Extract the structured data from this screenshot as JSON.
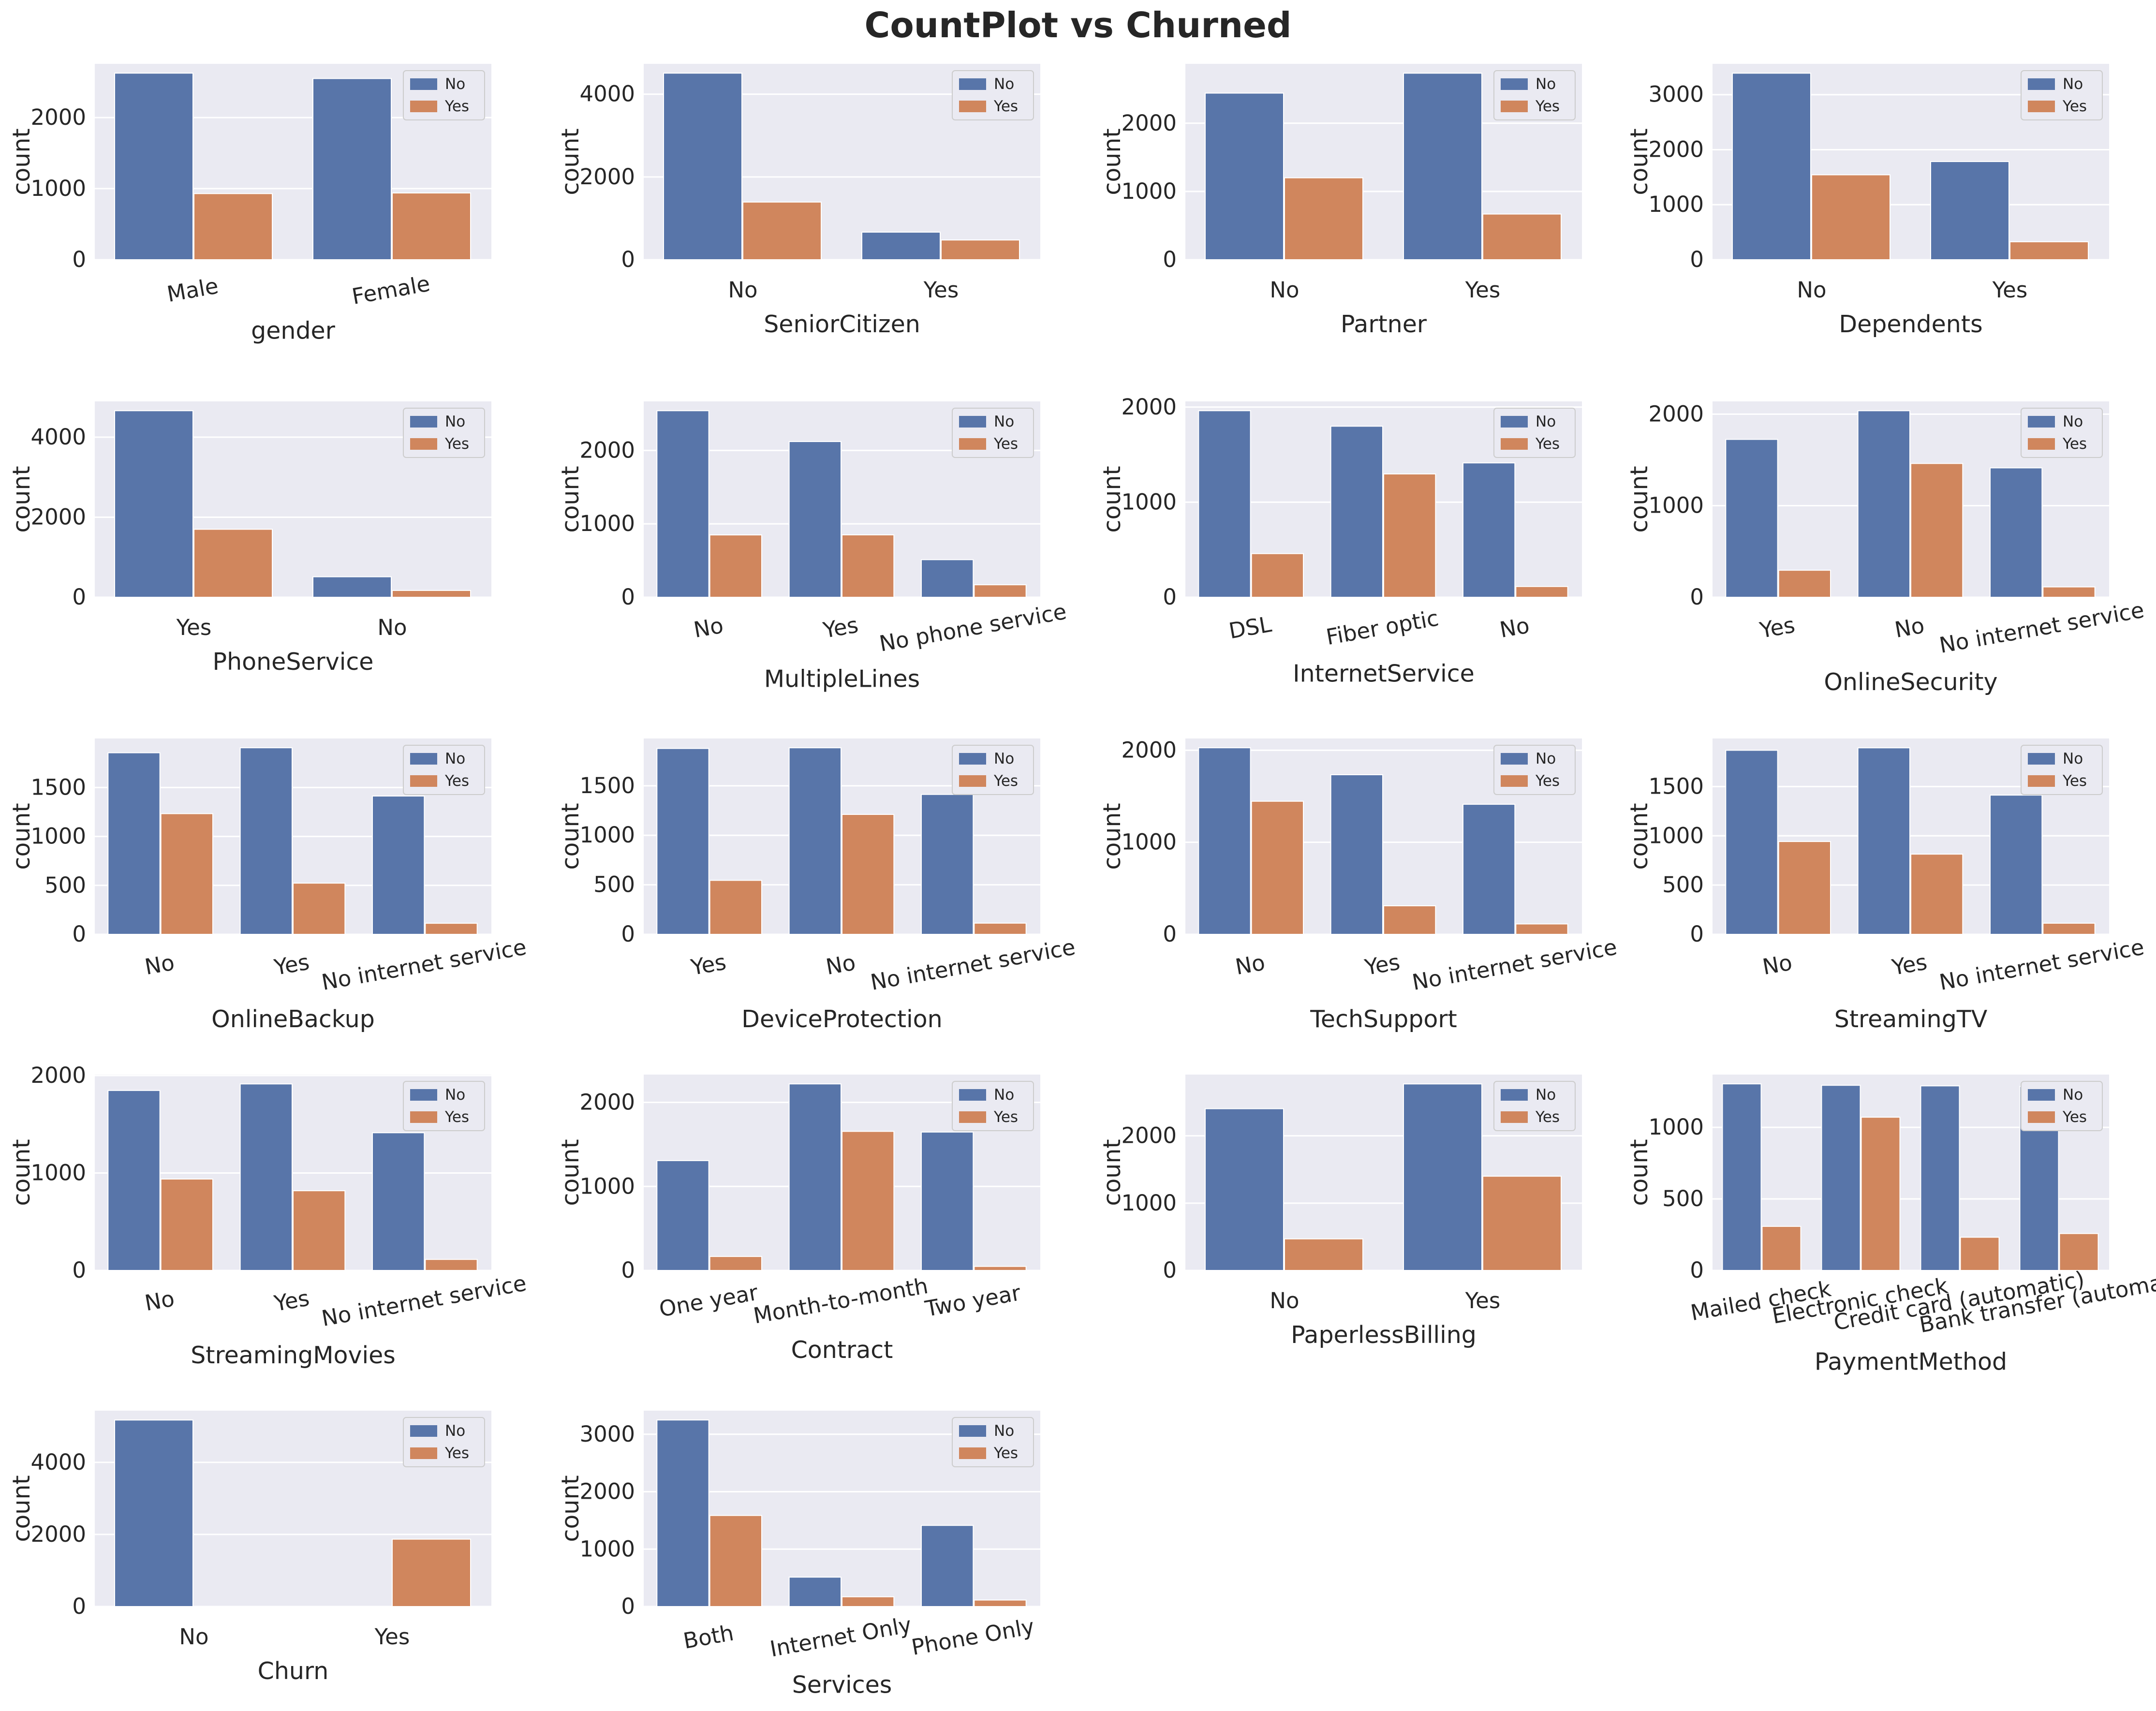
{
  "title": "CountPlot vs Churned",
  "colors": {
    "no": "#5875a9",
    "yes": "#d0865d",
    "panel_bg": "#eaeaf2",
    "grid": "#ffffff"
  },
  "legend_labels": [
    "No",
    "Yes"
  ],
  "chart_data": [
    {
      "type": "bar",
      "xlabel": "gender",
      "ylabel": "count",
      "categories": [
        "Male",
        "Female"
      ],
      "series": [
        {
          "name": "No",
          "values": [
            2625,
            2549
          ]
        },
        {
          "name": "Yes",
          "values": [
            930,
            939
          ]
        }
      ],
      "yticks": [
        0,
        1000,
        2000
      ],
      "ylim": [
        0,
        2756
      ],
      "rotate_labels": true,
      "legend": "top-right"
    },
    {
      "type": "bar",
      "xlabel": "SeniorCitizen",
      "ylabel": "count",
      "categories": [
        "No",
        "Yes"
      ],
      "series": [
        {
          "name": "No",
          "values": [
            4508,
            666
          ]
        },
        {
          "name": "Yes",
          "values": [
            1393,
            476
          ]
        }
      ],
      "yticks": [
        0,
        2000,
        4000
      ],
      "ylim": [
        0,
        4733
      ],
      "legend": "top-right"
    },
    {
      "type": "bar",
      "xlabel": "Partner",
      "ylabel": "count",
      "categories": [
        "No",
        "Yes"
      ],
      "series": [
        {
          "name": "No",
          "values": [
            2441,
            2733
          ]
        },
        {
          "name": "Yes",
          "values": [
            1200,
            669
          ]
        }
      ],
      "yticks": [
        0,
        1000,
        2000
      ],
      "ylim": [
        0,
        2870
      ],
      "legend": "top-right"
    },
    {
      "type": "bar",
      "xlabel": "Dependents",
      "ylabel": "count",
      "categories": [
        "No",
        "Yes"
      ],
      "series": [
        {
          "name": "No",
          "values": [
            3390,
            1784
          ]
        },
        {
          "name": "Yes",
          "values": [
            1543,
            326
          ]
        }
      ],
      "yticks": [
        0,
        1000,
        2000,
        3000
      ],
      "ylim": [
        0,
        3560
      ],
      "legend": "top-right"
    },
    {
      "type": "bar",
      "xlabel": "PhoneService",
      "ylabel": "count",
      "categories": [
        "Yes",
        "No"
      ],
      "series": [
        {
          "name": "No",
          "values": [
            4662,
            512
          ]
        },
        {
          "name": "Yes",
          "values": [
            1699,
            170
          ]
        }
      ],
      "yticks": [
        0,
        2000,
        4000
      ],
      "ylim": [
        0,
        4895
      ],
      "legend": "top-right"
    },
    {
      "type": "bar",
      "xlabel": "MultipleLines",
      "ylabel": "count",
      "categories": [
        "No",
        "Yes",
        "No phone service"
      ],
      "series": [
        {
          "name": "No",
          "values": [
            2541,
            2121,
            512
          ]
        },
        {
          "name": "Yes",
          "values": [
            849,
            850,
            170
          ]
        }
      ],
      "yticks": [
        0,
        1000,
        2000
      ],
      "ylim": [
        0,
        2668
      ],
      "rotate_labels": true,
      "legend": "top-right"
    },
    {
      "type": "bar",
      "xlabel": "InternetService",
      "ylabel": "count",
      "categories": [
        "DSL",
        "Fiber optic",
        "No"
      ],
      "series": [
        {
          "name": "No",
          "values": [
            1962,
            1799,
            1413
          ]
        },
        {
          "name": "Yes",
          "values": [
            459,
            1297,
            113
          ]
        }
      ],
      "yticks": [
        0,
        1000,
        2000
      ],
      "ylim": [
        0,
        2060
      ],
      "rotate_labels": true,
      "legend": "top-right"
    },
    {
      "type": "bar",
      "xlabel": "OnlineSecurity",
      "ylabel": "count",
      "categories": [
        "Yes",
        "No",
        "No internet service"
      ],
      "series": [
        {
          "name": "No",
          "values": [
            1724,
            2037,
            1413
          ]
        },
        {
          "name": "Yes",
          "values": [
            295,
            1461,
            113
          ]
        }
      ],
      "yticks": [
        0,
        1000,
        2000
      ],
      "ylim": [
        0,
        2139
      ],
      "rotate_labels": true,
      "legend": "top-right"
    },
    {
      "type": "bar",
      "xlabel": "OnlineBackup",
      "ylabel": "count",
      "categories": [
        "No",
        "Yes",
        "No internet service"
      ],
      "series": [
        {
          "name": "No",
          "values": [
            1855,
            1906,
            1413
          ]
        },
        {
          "name": "Yes",
          "values": [
            1233,
            523,
            113
          ]
        }
      ],
      "yticks": [
        0,
        500,
        1000,
        1500
      ],
      "ylim": [
        0,
        2001
      ],
      "rotate_labels": true,
      "legend": "top-right"
    },
    {
      "type": "bar",
      "xlabel": "DeviceProtection",
      "ylabel": "count",
      "categories": [
        "Yes",
        "No",
        "No internet service"
      ],
      "series": [
        {
          "name": "No",
          "values": [
            1877,
            1884,
            1413
          ]
        },
        {
          "name": "Yes",
          "values": [
            545,
            1211,
            113
          ]
        }
      ],
      "yticks": [
        0,
        500,
        1000,
        1500
      ],
      "ylim": [
        0,
        1978
      ],
      "rotate_labels": true,
      "legend": "top-right"
    },
    {
      "type": "bar",
      "xlabel": "TechSupport",
      "ylabel": "count",
      "categories": [
        "No",
        "Yes",
        "No internet service"
      ],
      "series": [
        {
          "name": "No",
          "values": [
            2027,
            1734,
            1413
          ]
        },
        {
          "name": "Yes",
          "values": [
            1446,
            310,
            113
          ]
        }
      ],
      "yticks": [
        0,
        1000,
        2000
      ],
      "ylim": [
        0,
        2128
      ],
      "rotate_labels": true,
      "legend": "top-right"
    },
    {
      "type": "bar",
      "xlabel": "StreamingTV",
      "ylabel": "count",
      "categories": [
        "No",
        "Yes",
        "No internet service"
      ],
      "series": [
        {
          "name": "No",
          "values": [
            1868,
            1893,
            1413
          ]
        },
        {
          "name": "Yes",
          "values": [
            942,
            814,
            113
          ]
        }
      ],
      "yticks": [
        0,
        500,
        1000,
        1500
      ],
      "ylim": [
        0,
        1988
      ],
      "rotate_labels": true,
      "legend": "top-right"
    },
    {
      "type": "bar",
      "xlabel": "StreamingMovies",
      "ylabel": "count",
      "categories": [
        "No",
        "Yes",
        "No internet service"
      ],
      "series": [
        {
          "name": "No",
          "values": [
            1847,
            1914,
            1413
          ]
        },
        {
          "name": "Yes",
          "values": [
            938,
            818,
            113
          ]
        }
      ],
      "yticks": [
        0,
        1000,
        2000
      ],
      "ylim": [
        0,
        2010
      ],
      "rotate_labels": true,
      "legend": "top-right"
    },
    {
      "type": "bar",
      "xlabel": "Contract",
      "ylabel": "count",
      "categories": [
        "One year",
        "Month-to-month",
        "Two year"
      ],
      "series": [
        {
          "name": "No",
          "values": [
            1307,
            2220,
            1647
          ]
        },
        {
          "name": "Yes",
          "values": [
            166,
            1655,
            48
          ]
        }
      ],
      "yticks": [
        0,
        1000,
        2000
      ],
      "ylim": [
        0,
        2331
      ],
      "rotate_labels": true,
      "legend": "top-right"
    },
    {
      "type": "bar",
      "xlabel": "PaperlessBilling",
      "ylabel": "count",
      "categories": [
        "No",
        "Yes"
      ],
      "series": [
        {
          "name": "No",
          "values": [
            2403,
            2771
          ]
        },
        {
          "name": "Yes",
          "values": [
            469,
            1400
          ]
        }
      ],
      "yticks": [
        0,
        1000,
        2000
      ],
      "ylim": [
        0,
        2910
      ],
      "legend": "top-right"
    },
    {
      "type": "bar",
      "xlabel": "PaymentMethod",
      "ylabel": "count",
      "categories": [
        "Mailed check",
        "Electronic check",
        "Credit card (automatic)",
        "Bank transfer (automatic)"
      ],
      "series": [
        {
          "name": "No",
          "values": [
            1304,
            1294,
            1290,
            1286
          ]
        },
        {
          "name": "Yes",
          "values": [
            308,
            1071,
            232,
            258
          ]
        }
      ],
      "yticks": [
        0,
        500,
        1000
      ],
      "ylim": [
        0,
        1369
      ],
      "rotate_labels": true,
      "legend": "top-right"
    },
    {
      "type": "bar",
      "xlabel": "Churn",
      "ylabel": "count",
      "categories": [
        "No",
        "Yes"
      ],
      "series": [
        {
          "name": "No",
          "values": [
            5174,
            0
          ]
        },
        {
          "name": "Yes",
          "values": [
            0,
            1869
          ]
        }
      ],
      "yticks": [
        0,
        2000,
        4000
      ],
      "ylim": [
        0,
        5433
      ],
      "legend": "top-right"
    },
    {
      "type": "bar",
      "xlabel": "Services",
      "ylabel": "count",
      "categories": [
        "Both",
        "Internet Only",
        "Phone Only"
      ],
      "series": [
        {
          "name": "No",
          "values": [
            3249,
            512,
            1413
          ]
        },
        {
          "name": "Yes",
          "values": [
            1586,
            170,
            113
          ]
        }
      ],
      "yticks": [
        0,
        1000,
        2000,
        3000
      ],
      "ylim": [
        0,
        3411
      ],
      "rotate_labels": true,
      "legend": "top-right"
    }
  ]
}
